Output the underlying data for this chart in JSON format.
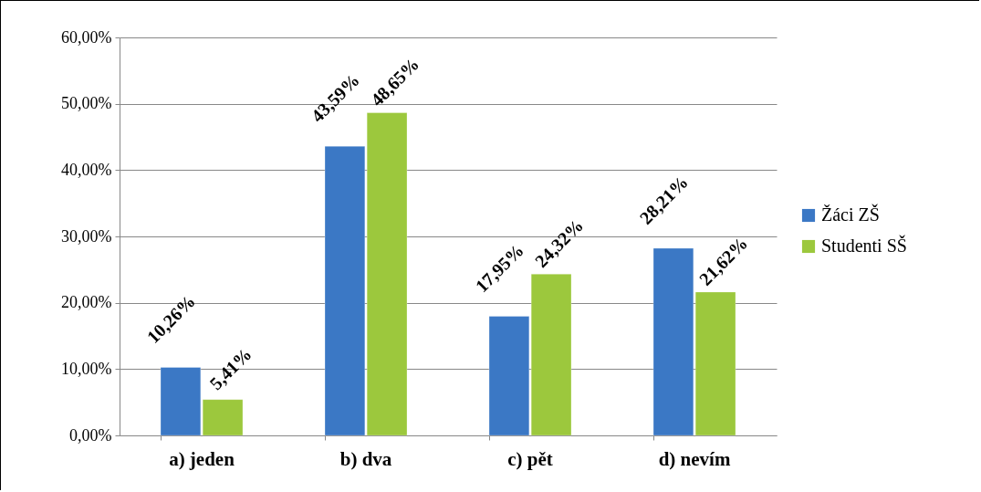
{
  "chart_data": {
    "type": "bar",
    "categories": [
      "a) jeden",
      "b) dva",
      "c) pět",
      "d) nevím"
    ],
    "series": [
      {
        "name": "Žáci ZŠ",
        "color": "#3b78c5",
        "values": [
          10.26,
          43.59,
          17.95,
          28.21
        ],
        "value_labels": [
          "10,26%",
          "43,59%",
          "17,95%",
          "28,21%"
        ]
      },
      {
        "name": "Studenti SŠ",
        "color": "#9cc83d",
        "values": [
          5.41,
          48.65,
          24.32,
          21.62
        ],
        "value_labels": [
          "5,41%",
          "48,65%",
          "24,32%",
          "21,62%"
        ]
      }
    ],
    "ylim": [
      0,
      60
    ],
    "yticks": [
      {
        "value": 0,
        "label": "0,00%"
      },
      {
        "value": 10,
        "label": "10,00%"
      },
      {
        "value": 20,
        "label": "20,00%"
      },
      {
        "value": 30,
        "label": "30,00%"
      },
      {
        "value": 40,
        "label": "40,00%"
      },
      {
        "value": 50,
        "label": "50,00%"
      },
      {
        "value": 60,
        "label": "60,00%"
      }
    ],
    "grid": "y",
    "legend": "right"
  }
}
